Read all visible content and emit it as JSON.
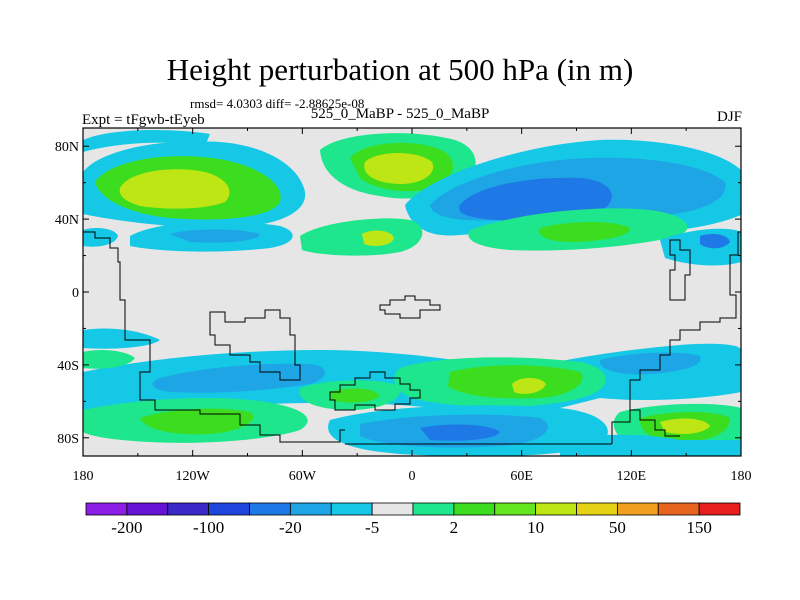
{
  "title": "Height perturbation at 500 hPa (in m)",
  "stats": "rmsd= 4.0303 diff= -2.88625e-08",
  "left_label": "Expt = tFgwb-tEyeb",
  "center_label": "525_0_MaBP - 525_0_MaBP",
  "right_label": "DJF",
  "map": {
    "lat_ticks": [
      {
        "value": 80,
        "label": "80N"
      },
      {
        "value": 40,
        "label": "40N"
      },
      {
        "value": 0,
        "label": "0"
      },
      {
        "value": -40,
        "label": "40S"
      },
      {
        "value": -80,
        "label": "80S"
      }
    ],
    "lon_ticks": [
      {
        "value": -180,
        "label": "180"
      },
      {
        "value": -120,
        "label": "120W"
      },
      {
        "value": -60,
        "label": "60W"
      },
      {
        "value": 0,
        "label": "0"
      },
      {
        "value": 60,
        "label": "60E"
      },
      {
        "value": 120,
        "label": "120E"
      },
      {
        "value": 180,
        "label": "180"
      }
    ],
    "background_color": "#e6e6e6"
  },
  "colorbar": {
    "colors": [
      "#8c1ee6",
      "#6414d2",
      "#3c28c8",
      "#1e46dc",
      "#1e78e6",
      "#1ea5e6",
      "#14c8e6",
      "#e6e6e6",
      "#1ee68c",
      "#3cdc1e",
      "#64e61e",
      "#bee614",
      "#e6d214",
      "#f0a01e",
      "#e6641e",
      "#e61e1e"
    ],
    "labels": [
      "-200",
      "-100",
      "-20",
      "-5",
      "2",
      "10",
      "50",
      "150"
    ]
  },
  "legend_colors": {
    "light_blue": "#14c8e6",
    "mid_blue": "#1ea5e6",
    "dark_blue": "#1e78e6",
    "light_green": "#1ee68c",
    "green": "#3cdc1e",
    "yellow_green": "#bee614"
  }
}
